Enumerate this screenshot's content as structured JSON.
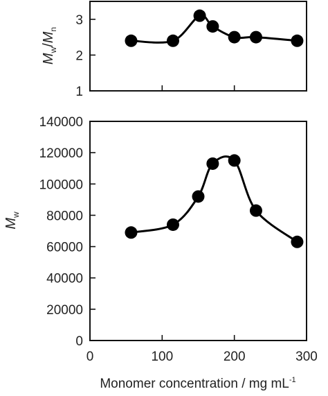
{
  "chart_data": [
    {
      "type": "line",
      "panel": "top",
      "ylabel": {
        "main": "M",
        "sub1": "w",
        "sep": "/",
        "main2": "M",
        "sub2": "n"
      },
      "xlim": [
        0,
        300
      ],
      "ylim": [
        1,
        3.5
      ],
      "yticks": [
        1,
        2,
        3
      ],
      "ytick_labels": [
        "1",
        "2",
        "3"
      ],
      "xticks": [
        0,
        100,
        200,
        300
      ],
      "show_xtick_labels": false,
      "series": [
        {
          "x": [
            57,
            115,
            152,
            170,
            200,
            230,
            287
          ],
          "y": [
            2.4,
            2.4,
            3.1,
            2.8,
            2.5,
            2.5,
            2.4
          ]
        }
      ]
    },
    {
      "type": "line",
      "panel": "bottom",
      "ylabel": {
        "main": "M",
        "sub1": "w"
      },
      "xlabel": {
        "text": "Monomer concentration / mg mL",
        "sup": "-1"
      },
      "xlim": [
        0,
        300
      ],
      "ylim": [
        0,
        140000
      ],
      "yticks": [
        0,
        20000,
        40000,
        60000,
        80000,
        100000,
        120000,
        140000
      ],
      "ytick_labels": [
        "0",
        "20000",
        "40000",
        "60000",
        "80000",
        "100000",
        "120000",
        "140000"
      ],
      "xticks": [
        0,
        100,
        200,
        300
      ],
      "xtick_labels": [
        "0",
        "100",
        "200",
        "300"
      ],
      "series": [
        {
          "x": [
            57,
            115,
            150,
            170,
            200,
            230,
            287
          ],
          "y": [
            69000,
            74000,
            92000,
            113000,
            115000,
            83000,
            63000
          ]
        }
      ]
    }
  ]
}
